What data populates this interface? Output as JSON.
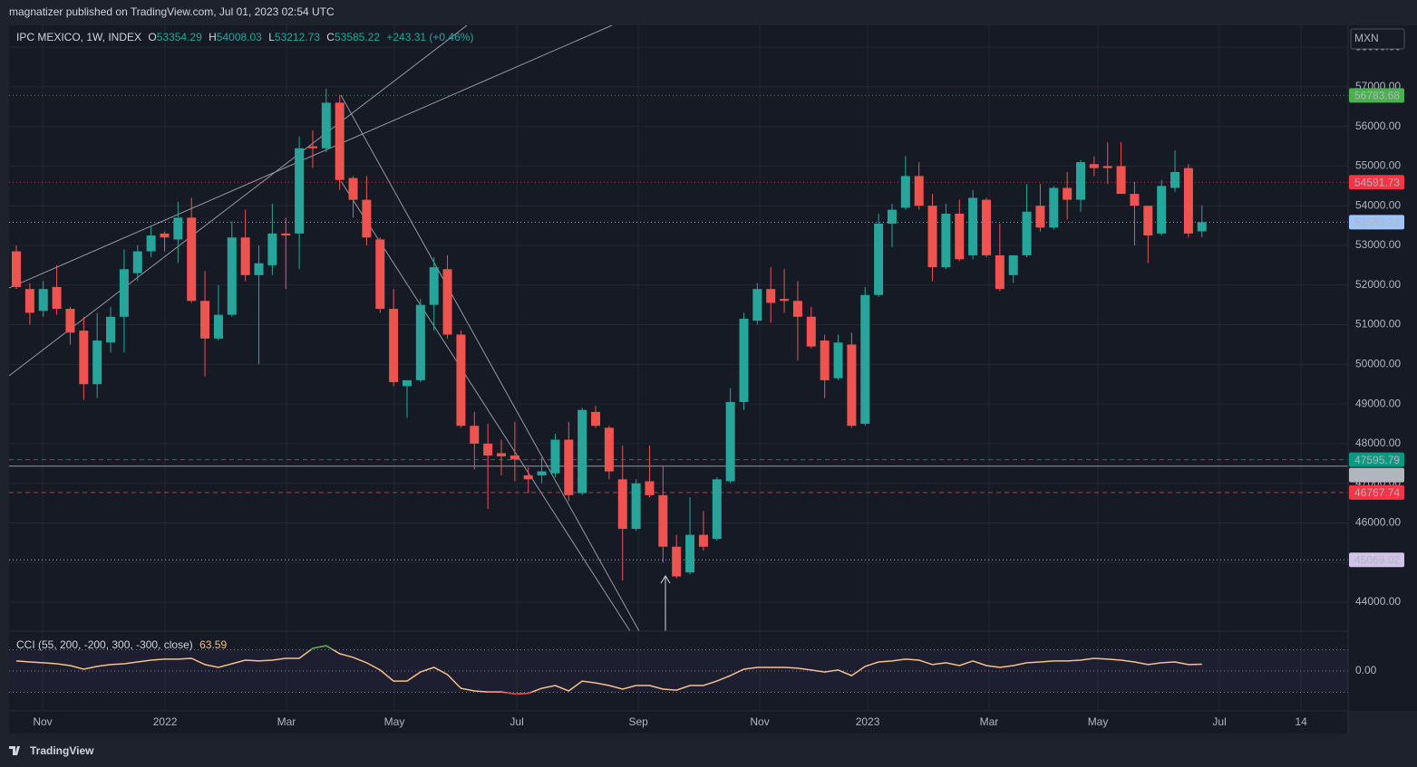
{
  "header": {
    "publisher": "magnatizer published on TradingView.com, Jul 01, 2023 02:54 UTC"
  },
  "footer": {
    "logo": "TradingView"
  },
  "chart_data": {
    "type": "candlestick",
    "symbol": "IPC MEXICO, 1W, INDEX",
    "ohlc_prefixes": [
      "O",
      "H",
      "L",
      "C"
    ],
    "change": "+243.31 (+0.46%)",
    "currency": "MXN",
    "up_color": "#26a69a",
    "down_color": "#ef5350",
    "grid": true,
    "open": [
      52850,
      51900,
      51350,
      51950,
      51400,
      50850,
      49500,
      50550,
      51200,
      52300,
      52850,
      53300,
      53150,
      53700,
      51600,
      50650,
      51250,
      53200,
      52250,
      52500,
      53300,
      53300,
      55500,
      55450,
      56600,
      54700,
      54150,
      53150,
      51400,
      49450,
      49600,
      51500,
      52400,
      50750,
      48450,
      48000,
      47760,
      47700,
      47200,
      47200,
      47250,
      48100,
      46750,
      48800,
      48400,
      47100,
      45850,
      47050,
      46700,
      45400,
      44750,
      45700,
      45600,
      47050,
      49050,
      51100,
      51900,
      51650,
      51600,
      51200,
      50600,
      49650,
      50500,
      48500,
      51750,
      53550,
      53950,
      54750,
      54000,
      52450,
      53800,
      52750,
      54150,
      52750,
      52250,
      52750,
      54000,
      53450,
      54450,
      54150,
      55050,
      55000,
      55000,
      54300,
      54000,
      53300,
      54450,
      54950,
      53354.29
    ],
    "high": [
      53000,
      52050,
      52100,
      52500,
      51450,
      51200,
      51300,
      51450,
      52900,
      53000,
      53500,
      53350,
      54100,
      54200,
      52350,
      52000,
      53600,
      53900,
      53000,
      54050,
      53700,
      55750,
      55900,
      56950,
      56783.68,
      54750,
      54750,
      53200,
      51900,
      49600,
      51650,
      52700,
      52750,
      50850,
      48800,
      48500,
      48100,
      48550,
      47400,
      47650,
      48250,
      48550,
      48900,
      48950,
      48450,
      47950,
      47100,
      47950,
      47450,
      45700,
      46650,
      46300,
      47150,
      49400,
      51300,
      52050,
      52450,
      52400,
      52100,
      51450,
      50750,
      50750,
      50800,
      51950,
      53800,
      54050,
      55250,
      55100,
      54300,
      54050,
      54150,
      54400,
      54200,
      53550,
      52750,
      54550,
      54550,
      54500,
      54850,
      55150,
      55250,
      55600,
      55600,
      54600,
      54000,
      54650,
      55400,
      55050,
      54008.03
    ],
    "low": [
      51900,
      51000,
      51200,
      51250,
      50500,
      49100,
      49150,
      50300,
      50300,
      52100,
      52700,
      52850,
      52550,
      51550,
      49700,
      50600,
      51200,
      52100,
      50000,
      52250,
      51900,
      52400,
      54950,
      55350,
      54400,
      53700,
      53000,
      51300,
      49450,
      48650,
      49550,
      50850,
      50650,
      48400,
      47350,
      46350,
      47200,
      47050,
      46750,
      47000,
      47150,
      46550,
      46700,
      48400,
      47100,
      44550,
      45800,
      46650,
      45000,
      44600,
      44700,
      45300,
      45550,
      47000,
      48850,
      51000,
      51050,
      51300,
      50100,
      50400,
      49150,
      49600,
      48400,
      48450,
      51700,
      52950,
      53900,
      53900,
      52100,
      52400,
      52600,
      52650,
      52700,
      51850,
      52050,
      52700,
      53350,
      53400,
      53650,
      53850,
      54750,
      54550,
      54300,
      53000,
      52550,
      53250,
      54350,
      53200,
      53212.73
    ],
    "close": [
      51950,
      51300,
      51900,
      51400,
      50800,
      49500,
      50600,
      51200,
      52400,
      52850,
      53250,
      53200,
      53700,
      51600,
      50650,
      51250,
      53200,
      52250,
      52550,
      53300,
      53250,
      55450,
      55450,
      56600,
      54650,
      54150,
      53200,
      51400,
      49550,
      49600,
      51500,
      52450,
      50750,
      48450,
      48000,
      47700,
      47680,
      47600,
      47100,
      47300,
      48100,
      46700,
      48850,
      48450,
      47300,
      45850,
      47000,
      46700,
      45400,
      44650,
      45700,
      45400,
      47100,
      49050,
      51150,
      51900,
      51550,
      51600,
      51200,
      50450,
      49600,
      50550,
      48450,
      51750,
      53550,
      53900,
      54750,
      54000,
      52450,
      53800,
      52650,
      54200,
      52750,
      51900,
      52750,
      53850,
      53450,
      54450,
      54150,
      55100,
      54950,
      54950,
      54300,
      54000,
      53250,
      54500,
      54850,
      53300,
      53585.22
    ],
    "xlim": [
      -0.54,
      98.85
    ],
    "xticks": [
      {
        "value": 1.95,
        "label": "Nov"
      },
      {
        "value": 11.04,
        "label": "2022"
      },
      {
        "value": 20.05,
        "label": "Mar"
      },
      {
        "value": 28.06,
        "label": "May"
      },
      {
        "value": 37.15,
        "label": "Jul"
      },
      {
        "value": 46.17,
        "label": "Sep"
      },
      {
        "value": 55.18,
        "label": "Nov"
      },
      {
        "value": 63.19,
        "label": "2023"
      },
      {
        "value": 72.2,
        "label": "Mar"
      },
      {
        "value": 80.28,
        "label": "May"
      },
      {
        "value": 89.3,
        "label": "Jul"
      },
      {
        "value": 95.36,
        "label": "14"
      }
    ],
    "ylim": [
      43270,
      58550
    ],
    "yticks": [
      {
        "value": 44000,
        "label": "44000.00"
      },
      {
        "value": 45000,
        "label": "45000.00"
      },
      {
        "value": 46000,
        "label": "46000.00"
      },
      {
        "value": 47000,
        "label": "47000.00"
      },
      {
        "value": 48000,
        "label": "48000.00"
      },
      {
        "value": 49000,
        "label": "49000.00"
      },
      {
        "value": 50000,
        "label": "50000.00"
      },
      {
        "value": 51000,
        "label": "51000.00"
      },
      {
        "value": 52000,
        "label": "52000.00"
      },
      {
        "value": 53000,
        "label": "53000.00"
      },
      {
        "value": 54000,
        "label": "54000.00"
      },
      {
        "value": 55000,
        "label": "55000.00"
      },
      {
        "value": 56000,
        "label": "56000.00"
      },
      {
        "value": 57000,
        "label": "57000.00"
      },
      {
        "value": 58000,
        "label": "58000.00"
      }
    ],
    "price_lines": [
      {
        "value": 56783.68,
        "color": "#4caf50",
        "text_color": "#131722",
        "style": "dotted"
      },
      {
        "value": 54591.73,
        "color": "#f23645",
        "text_color": "#ffffff",
        "style": "dotted"
      },
      {
        "value": 53585.22,
        "color": "#9fc5f8",
        "text_color": "#131722",
        "style": "dotted"
      },
      {
        "value": 47595.79,
        "color": "#089981",
        "text_color": "#ffffff",
        "style": "dashed"
      },
      {
        "value": 47432.52,
        "color": "#b2b5be",
        "text_color": "#131722",
        "style": "solid"
      },
      {
        "value": 46767.74,
        "color": "#f23645",
        "text_color": "#ffffff",
        "style": "dashed"
      },
      {
        "value": 45069.02,
        "color": "#d1c4e9",
        "text_color": "#131722",
        "style": "dotted"
      }
    ],
    "indicator": {
      "label": "CCI (55, 200, -200, 300, -300, close)",
      "color": "#f5c18a",
      "overbought_color": "#4caf50",
      "oversold_color": "#f23645",
      "bands": [
        200,
        -200
      ],
      "ylim": [
        -374,
        374
      ],
      "yticks": [
        {
          "value": 0,
          "label": "0.00"
        }
      ],
      "values": [
        94,
        85,
        77,
        68,
        51,
        17,
        43,
        60,
        68,
        85,
        102,
        111,
        111,
        119,
        60,
        34,
        68,
        102,
        94,
        102,
        119,
        119,
        213,
        238,
        162,
        128,
        77,
        9,
        -94,
        -94,
        -9,
        34,
        -34,
        -162,
        -187,
        -196,
        -196,
        -215,
        -210,
        -162,
        -136,
        -187,
        -94,
        -111,
        -136,
        -170,
        -136,
        -136,
        -170,
        -179,
        -136,
        -136,
        -94,
        -43,
        17,
        34,
        34,
        34,
        26,
        9,
        -9,
        9,
        -43,
        43,
        85,
        94,
        111,
        102,
        60,
        77,
        51,
        94,
        51,
        34,
        51,
        77,
        85,
        94,
        94,
        102,
        119,
        111,
        102,
        85,
        60,
        77,
        85,
        60,
        63.59
      ]
    }
  }
}
